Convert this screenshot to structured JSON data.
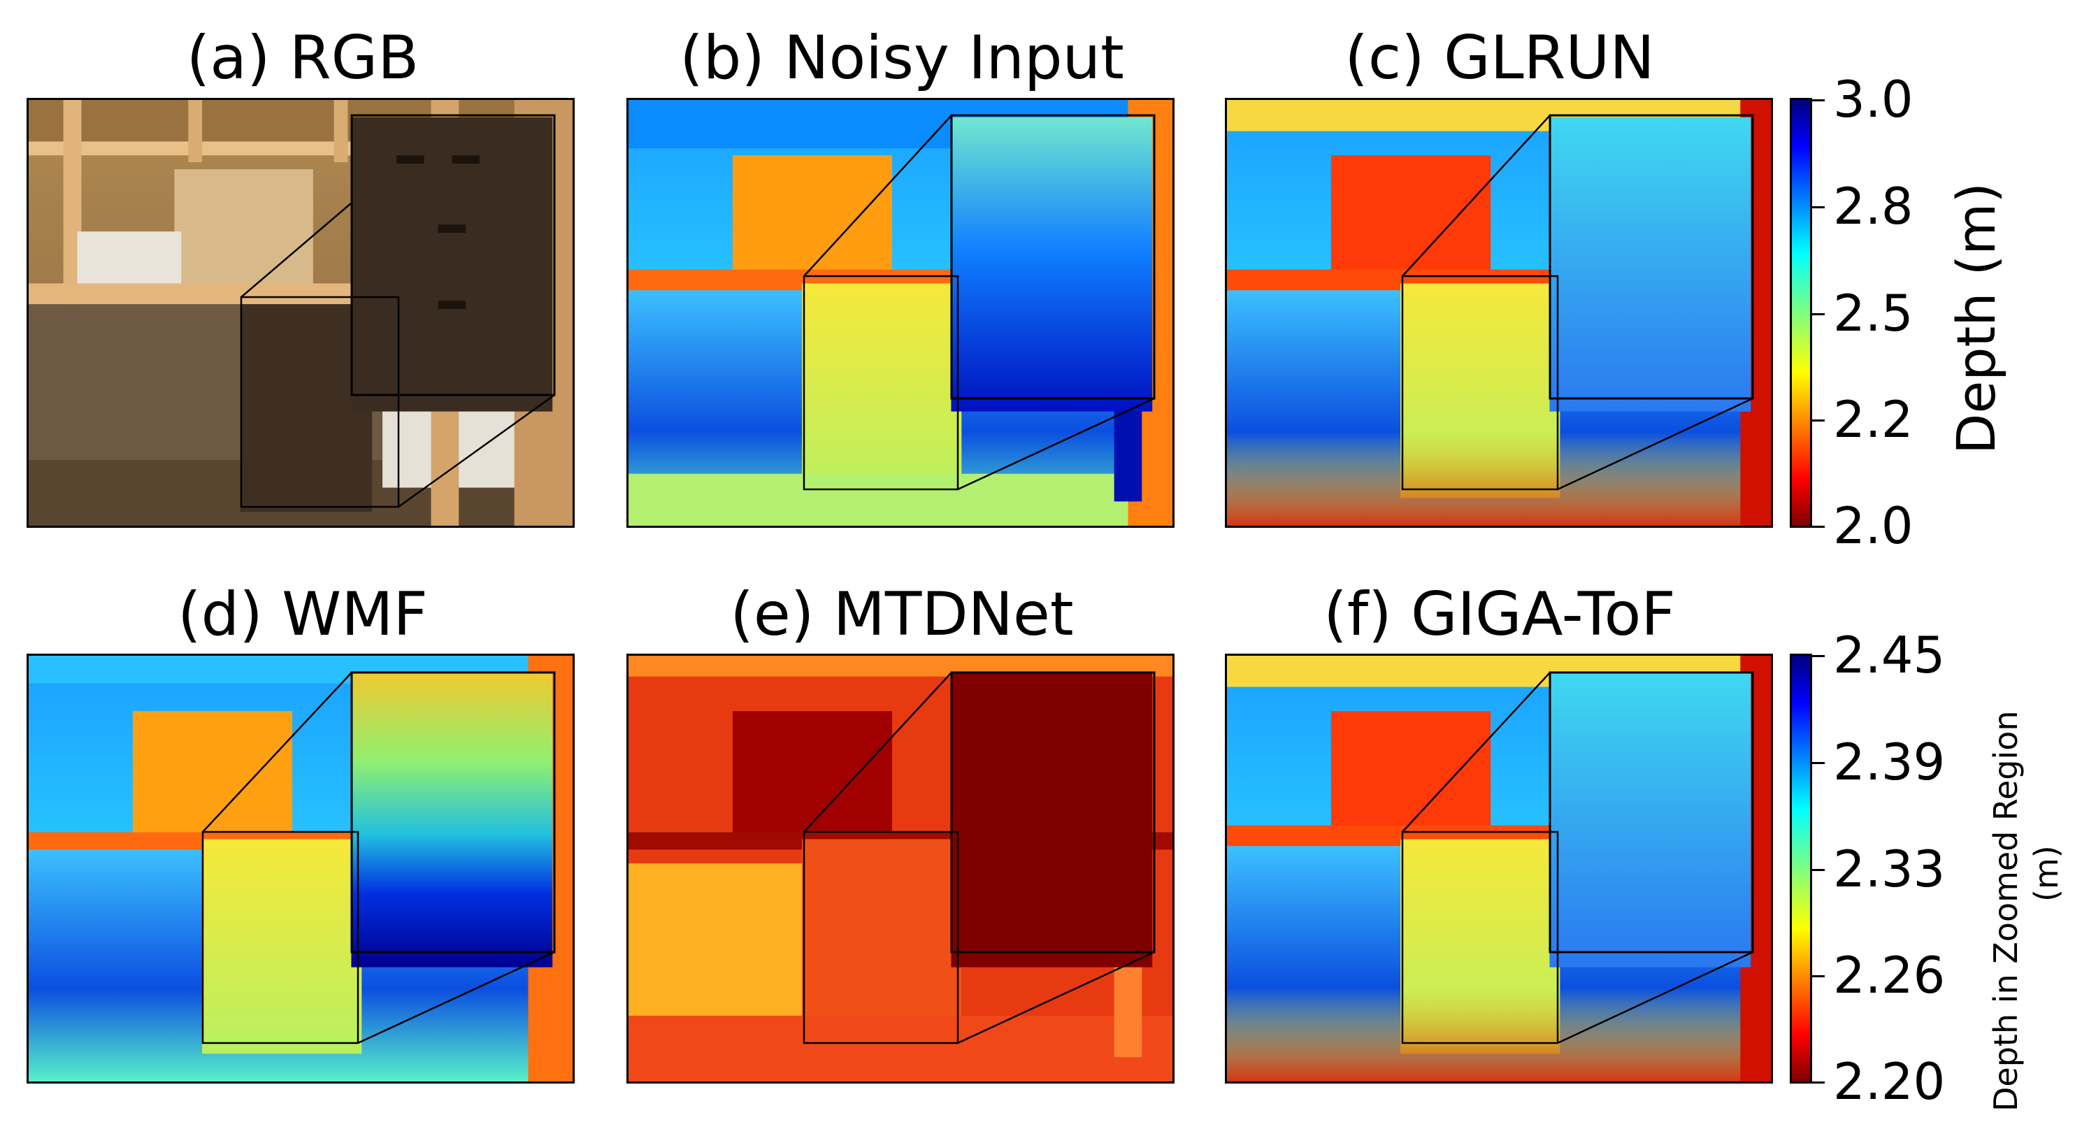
{
  "panels": [
    {
      "id": "a",
      "title": "(a) RGB"
    },
    {
      "id": "b",
      "title": "(b) Noisy Input"
    },
    {
      "id": "c",
      "title": "(c) GLRUN"
    },
    {
      "id": "d",
      "title": "(d) WMF"
    },
    {
      "id": "e",
      "title": "(e) MTDNet"
    },
    {
      "id": "f",
      "title": "(f) GIGA-ToF"
    }
  ],
  "colorbar_top": {
    "label": "Depth (m)",
    "ticks": [
      "3.0",
      "2.8",
      "2.5",
      "2.2",
      "2.0"
    ]
  },
  "colorbar_bottom": {
    "label_line1": "Depth in Zoomed Region",
    "label_line2": "(m)",
    "ticks": [
      "2.45",
      "2.39",
      "2.33",
      "2.26",
      "2.20"
    ]
  },
  "colormap": "jet"
}
